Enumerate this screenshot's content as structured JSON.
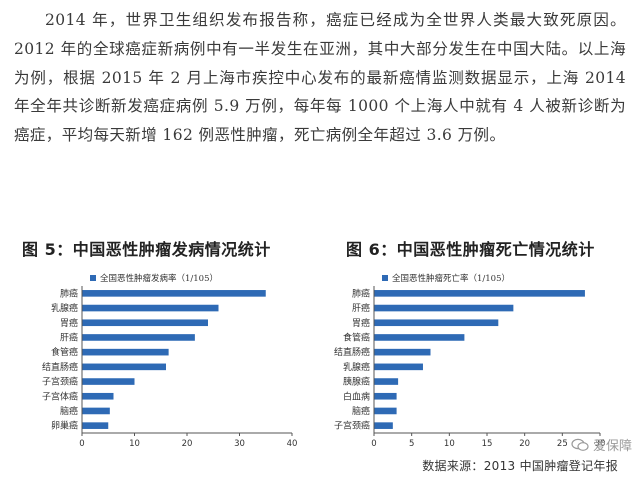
{
  "article": {
    "paragraph": "2014 年，世界卫生组织发布报告称，癌症已经成为全世界人类最大致死原因。2012 年的全球癌症新病例中有一半发生在亚洲，其中大部分发生在中国大陆。以上海为例，根据 2015 年 2 月上海市疾控中心发布的最新癌情监测数据显示，上海 2014 年全年共诊断新发癌症病例 5.9 万例，每年每 1000 个上海人中就有 4 人被新诊断为癌症，平均每天新增 162 例恶性肿瘤，死亡病例全年超过 3.6 万例。"
  },
  "figures": {
    "fig5_title": "图 5：中国恶性肿瘤发病情况统计",
    "fig6_title": "图 6：中国恶性肿瘤死亡情况统计"
  },
  "source": "数据来源：2013 中国肿瘤登记年报",
  "watermark": "爱保障",
  "chart_data": [
    {
      "type": "bar",
      "orientation": "horizontal",
      "title": "",
      "legend": "全国恶性肿瘤发病率（1/105）",
      "categories": [
        "肺癌",
        "乳腺癌",
        "胃癌",
        "肝癌",
        "食管癌",
        "结直肠癌",
        "子宫颈癌",
        "子宫体癌",
        "脑癌",
        "卵巢癌"
      ],
      "values": [
        35,
        26,
        24,
        21.5,
        16.5,
        16,
        10,
        6,
        5.3,
        5
      ],
      "xlim": [
        0,
        40
      ],
      "xticks": [
        0,
        10,
        20,
        30,
        40
      ],
      "color": "#2e6ab5",
      "legend_position": "top-left"
    },
    {
      "type": "bar",
      "orientation": "horizontal",
      "title": "",
      "legend": "全国恶性肿瘤死亡率（1/105）",
      "categories": [
        "肺癌",
        "肝癌",
        "胃癌",
        "食管癌",
        "结直肠癌",
        "乳腺癌",
        "胰腺癌",
        "白血病",
        "脑癌",
        "子宫颈癌"
      ],
      "values": [
        28,
        18.5,
        16.5,
        12,
        7.5,
        6.5,
        3.2,
        3,
        3,
        2.5
      ],
      "xlim": [
        0,
        30
      ],
      "xticks": [
        0,
        5,
        10,
        15,
        20,
        25,
        30
      ],
      "color": "#2e6ab5",
      "legend_position": "top-left"
    }
  ]
}
